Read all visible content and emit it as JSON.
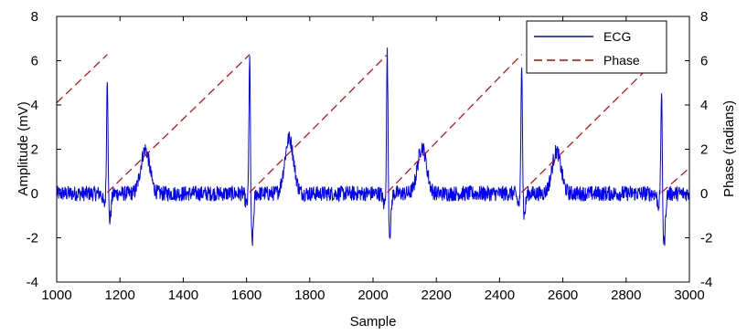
{
  "chart_data": {
    "type": "line",
    "title": "",
    "xlabel": "Sample",
    "ylabel": "Amplitude (mV)",
    "y2label": "Phase (radians)",
    "xlim": [
      1000,
      3000
    ],
    "ylim": [
      -4,
      8
    ],
    "y2lim": [
      -4,
      8
    ],
    "xticks": [
      1000,
      1200,
      1400,
      1600,
      1800,
      2000,
      2200,
      2400,
      2600,
      2800,
      3000
    ],
    "yticks": [
      -4,
      -2,
      0,
      2,
      4,
      6,
      8
    ],
    "y2ticks": [
      -4,
      -2,
      0,
      2,
      4,
      6,
      8
    ],
    "grid": false,
    "legend": {
      "placement": "top-right"
    },
    "series": [
      {
        "name": "ECG",
        "color": "#0000ff",
        "style": "solid",
        "beats": [
          {
            "r_peak_x": 1160,
            "r_peak_y": 5.5,
            "s_dip_y": -1.2,
            "t_x": 1280,
            "t_y": 2.0
          },
          {
            "r_peak_x": 1610,
            "r_peak_y": 6.4,
            "s_dip_y": -2.2,
            "t_x": 1735,
            "t_y": 2.5
          },
          {
            "r_peak_x": 2045,
            "r_peak_y": 6.6,
            "s_dip_y": -1.8,
            "t_x": 2155,
            "t_y": 2.1
          },
          {
            "r_peak_x": 2470,
            "r_peak_y": 6.2,
            "s_dip_y": -1.0,
            "t_x": 2580,
            "t_y": 1.9
          },
          {
            "r_peak_x": 2912,
            "r_peak_y": 4.9,
            "s_dip_y": -2.3,
            "t_x": null,
            "t_y": null
          }
        ],
        "baseline_noise_mV": 0.35
      },
      {
        "name": "Phase",
        "color": "#cc0000",
        "style": "dashed",
        "points": [
          [
            1000,
            4.1
          ],
          [
            1160,
            6.28
          ],
          [
            1160,
            0.05
          ],
          [
            1610,
            6.28
          ],
          [
            1610,
            0.05
          ],
          [
            2045,
            6.28
          ],
          [
            2045,
            0.05
          ],
          [
            2470,
            6.28
          ],
          [
            2470,
            0.05
          ],
          [
            2912,
            6.28
          ],
          [
            2912,
            0.05
          ],
          [
            3000,
            1.15
          ]
        ]
      }
    ]
  }
}
